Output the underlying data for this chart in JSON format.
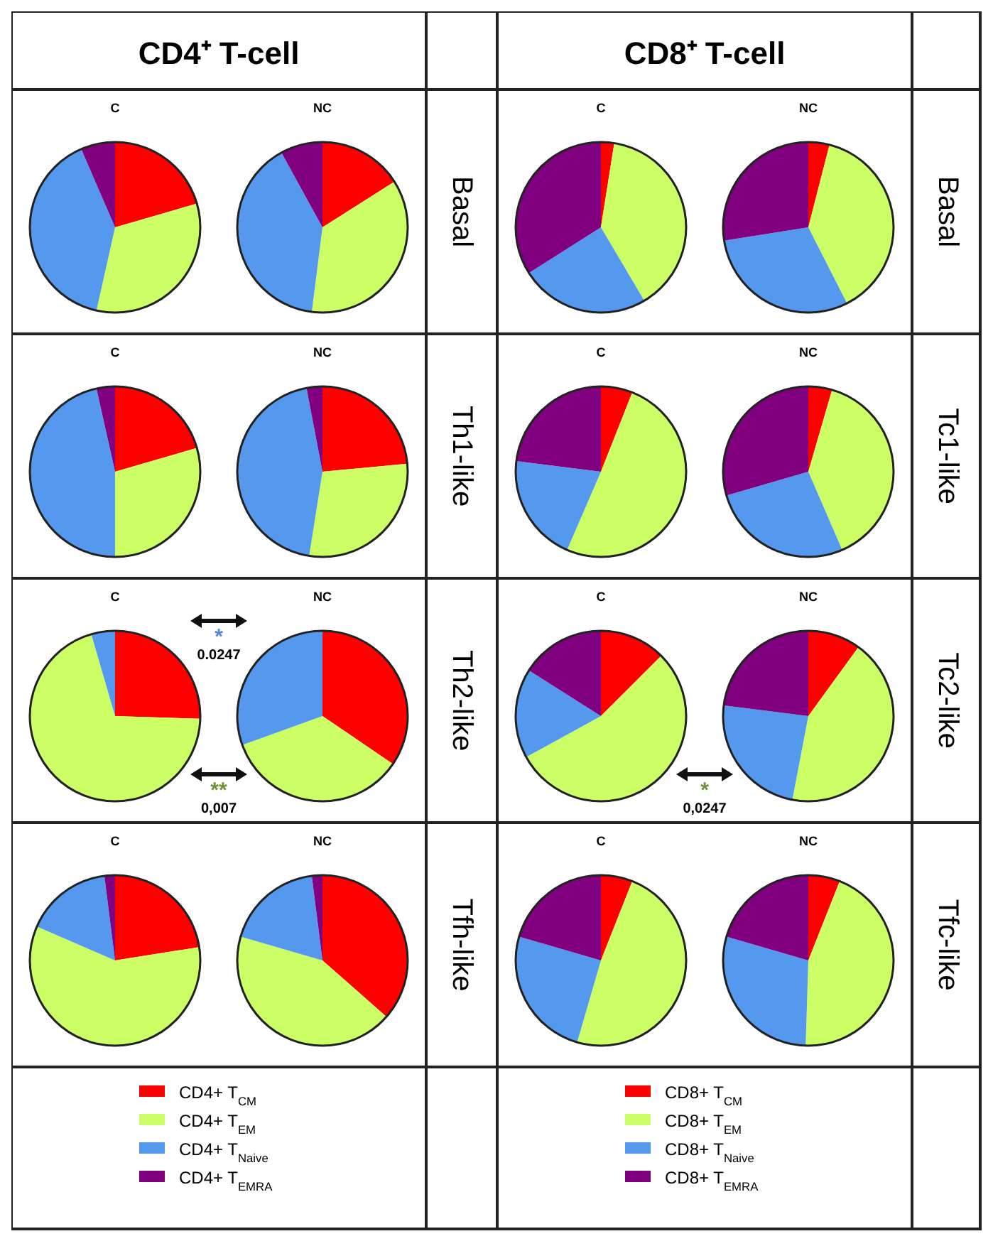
{
  "chart_data": [
    {
      "type": "pie",
      "title": "C",
      "values": [
        20.5,
        33,
        40,
        6.5
      ],
      "colors": [
        "#ff0000",
        "#ccff66",
        "#5599ee",
        "#800080"
      ],
      "annotations": [
        "CD4⁺ T-cell"
      ]
    },
    {
      "type": "pie",
      "title": "NC",
      "values": [
        16,
        36,
        40,
        8
      ],
      "colors": [
        "#ff0000",
        "#ccff66",
        "#5599ee",
        "#800080"
      ],
      "annotations": [
        "Basal"
      ]
    },
    {
      "type": "pie",
      "title": "C",
      "values": [
        20.5,
        29.5,
        46.5,
        3.5
      ],
      "colors": [
        "#ff0000",
        "#ccff66",
        "#5599ee",
        "#800080"
      ]
    },
    {
      "type": "pie",
      "title": "NC",
      "values": [
        23.5,
        29,
        44.5,
        3
      ],
      "colors": [
        "#ff0000",
        "#ccff66",
        "#5599ee",
        "#800080"
      ],
      "annotations": [
        "Th1-like"
      ]
    },
    {
      "type": "pie",
      "title": "C",
      "values": [
        25.5,
        70,
        4.5,
        0
      ],
      "colors": [
        "#ff0000",
        "#ccff66",
        "#5599ee",
        "#800080"
      ],
      "annotations": [
        "*",
        "0.0247",
        "**",
        "0,007"
      ]
    },
    {
      "type": "pie",
      "title": "NC",
      "values": [
        34.5,
        35,
        30.5,
        0
      ],
      "colors": [
        "#ff0000",
        "#ccff66",
        "#5599ee",
        "#800080"
      ],
      "annotations": [
        "Th2-like"
      ]
    },
    {
      "type": "pie",
      "title": "C",
      "values": [
        22.5,
        59,
        16.5,
        2
      ],
      "colors": [
        "#ff0000",
        "#ccff66",
        "#5599ee",
        "#800080"
      ]
    },
    {
      "type": "pie",
      "title": "NC",
      "categories": [
        "CD4+ T$_{CM}$",
        "CD4+ T$_{EM}$",
        "CD4+ T$_{Naive}$",
        "CD4+ T$_{EMRA}$"
      ],
      "values": [
        36.5,
        43,
        18.5,
        2
      ],
      "colors": [
        "#ff0000",
        "#ccff66",
        "#5599ee",
        "#800080"
      ],
      "annotations": [
        "Tfh-like"
      ],
      "legend": "bottom"
    },
    {
      "type": "pie",
      "title": "C",
      "values": [
        2.5,
        39,
        24.5,
        34
      ],
      "colors": [
        "#ff0000",
        "#ccff66",
        "#5599ee",
        "#800080"
      ],
      "annotations": [
        "CD8⁺ T-cell"
      ]
    },
    {
      "type": "pie",
      "title": "NC",
      "values": [
        4,
        38.5,
        30,
        27.5
      ],
      "colors": [
        "#ff0000",
        "#ccff66",
        "#5599ee",
        "#800080"
      ],
      "annotations": [
        "Basal"
      ]
    },
    {
      "type": "pie",
      "title": "C",
      "values": [
        6,
        50.5,
        20.5,
        23
      ],
      "colors": [
        "#ff0000",
        "#ccff66",
        "#5599ee",
        "#800080"
      ]
    },
    {
      "type": "pie",
      "title": "NC",
      "values": [
        4.5,
        39,
        27,
        29.5
      ],
      "colors": [
        "#ff0000",
        "#ccff66",
        "#5599ee",
        "#800080"
      ],
      "annotations": [
        "Tc1-like"
      ]
    },
    {
      "type": "pie",
      "title": "C",
      "values": [
        12.5,
        54.5,
        17,
        16
      ],
      "colors": [
        "#ff0000",
        "#ccff66",
        "#5599ee",
        "#800080"
      ],
      "annotations": [
        "*",
        "0,0247"
      ]
    },
    {
      "type": "pie",
      "title": "NC",
      "values": [
        10,
        43,
        24,
        23
      ],
      "colors": [
        "#ff0000",
        "#ccff66",
        "#5599ee",
        "#800080"
      ],
      "annotations": [
        "Tc2-like"
      ]
    },
    {
      "type": "pie",
      "title": "C",
      "values": [
        6,
        48.5,
        25,
        20.5
      ],
      "colors": [
        "#ff0000",
        "#ccff66",
        "#5599ee",
        "#800080"
      ]
    },
    {
      "type": "pie",
      "title": "NC",
      "categories": [
        "CD8+ T$_{CM}$",
        "CD8+ T$_{EM}$",
        "CD8+ T$_{Naive}$",
        "CD8+ T$_{EMRA}$"
      ],
      "values": [
        6,
        44.5,
        29,
        20.5
      ],
      "colors": [
        "#ff0000",
        "#ccff66",
        "#5599ee",
        "#800080"
      ],
      "annotations": [
        "Tfc-like"
      ],
      "legend": "bottom"
    }
  ]
}
